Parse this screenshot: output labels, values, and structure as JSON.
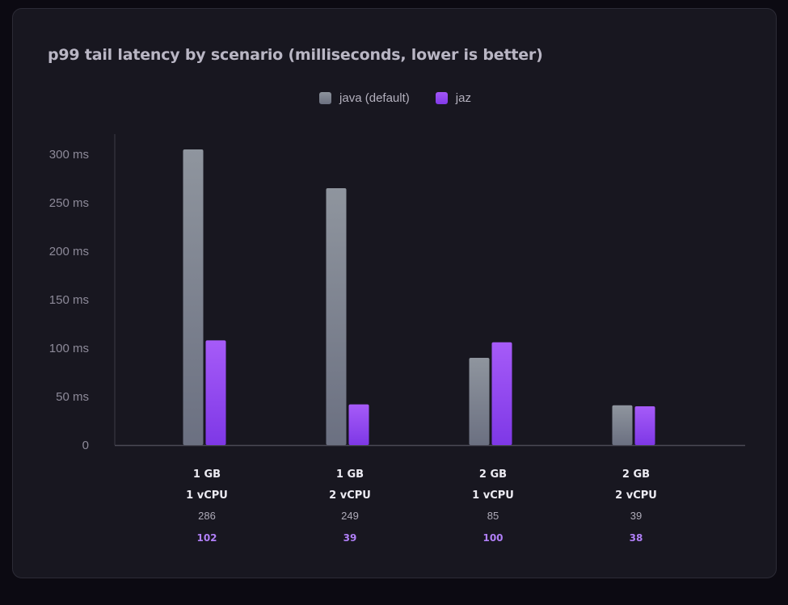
{
  "chart_data": {
    "type": "bar",
    "title": "p99 tail latency by scenario (milliseconds, lower is better)",
    "categories": [
      [
        "1 GB",
        "1 vCPU"
      ],
      [
        "1 GB",
        "2 vCPU"
      ],
      [
        "2 GB",
        "1 vCPU"
      ],
      [
        "2 GB",
        "2 vCPU"
      ]
    ],
    "series": [
      {
        "name": "java (default)",
        "values": [
          286,
          249,
          85,
          39
        ],
        "color": "#858b96"
      },
      {
        "name": "jaz",
        "values": [
          102,
          39,
          100,
          38
        ],
        "color": "#9147f2"
      }
    ],
    "data_labels": [
      [
        "286",
        "102"
      ],
      [
        "249",
        "39"
      ],
      [
        "85",
        "100"
      ],
      [
        "39",
        "38"
      ]
    ],
    "bar_tops_ms": {
      "java (default)": [
        305,
        265,
        90,
        41
      ],
      "jaz": [
        108,
        42,
        106,
        40
      ]
    },
    "yticks": [
      "0",
      "50 ms",
      "100 ms",
      "150 ms",
      "200 ms",
      "250 ms",
      "300 ms"
    ],
    "ylim": [
      0,
      320
    ],
    "xlabel": "",
    "ylabel": "",
    "grid": false,
    "legend_position": "top-center"
  }
}
